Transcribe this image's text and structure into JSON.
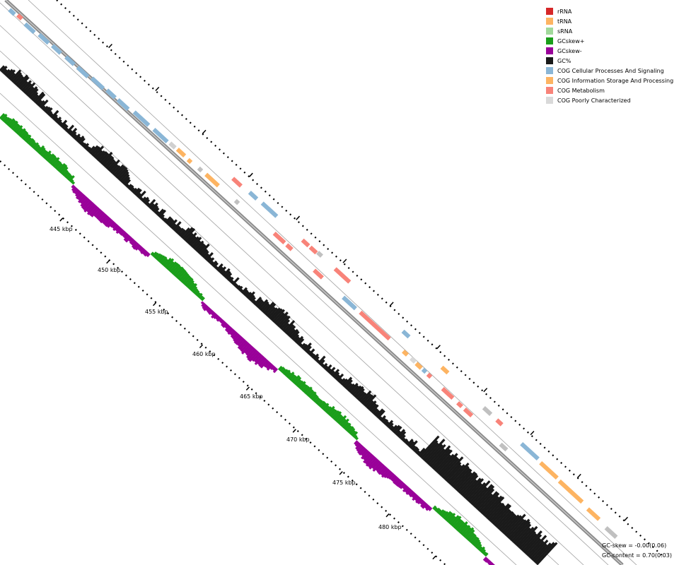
{
  "legend": [
    {
      "label": "rRNA",
      "color": "#d62728"
    },
    {
      "label": "tRNA",
      "color": "#fdb462"
    },
    {
      "label": "sRNA",
      "color": "#a1d99b"
    },
    {
      "label": "GCskew+",
      "color": "#1a9e1a"
    },
    {
      "label": "GCskew-",
      "color": "#990099"
    },
    {
      "label": "GC%",
      "color": "#1a1a1a"
    },
    {
      "label": "COG Cellular Processes And Signaling",
      "color": "#8ab6d6"
    },
    {
      "label": "COG Information Storage And Processing",
      "color": "#fdb462"
    },
    {
      "label": "COG Metabolism",
      "color": "#f88379"
    },
    {
      "label": "COG Poorly Characterized",
      "color": "#d9d9d9"
    }
  ],
  "scale_labels": [
    "445 kbp",
    "450 kbp",
    "455 kbp",
    "460 kbp",
    "465 kbp",
    "470 kbp",
    "475 kbp",
    "480 kbp"
  ],
  "stats": {
    "gc_skew": "GC-skew = -0.00(0.06)",
    "gc_content": "GC-content = 0.70(0.03)"
  },
  "colors": {
    "backbone": "#8a8a8a",
    "guide": "#a0a0a0",
    "gc": "#1a1a1a",
    "skew_pos": "#1a9e1a",
    "skew_neg": "#990099",
    "poorly": "#c0c0c0"
  }
}
